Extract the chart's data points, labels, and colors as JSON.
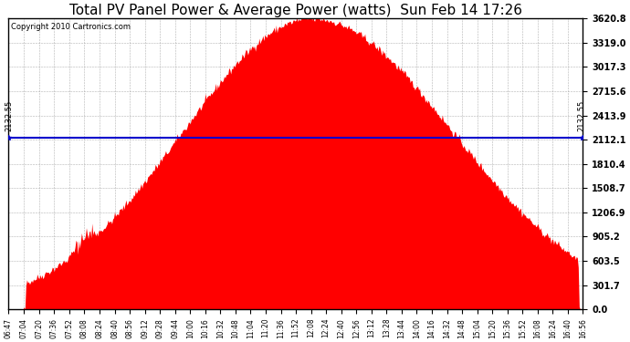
{
  "title": "Total PV Panel Power & Average Power (watts)  Sun Feb 14 17:26",
  "copyright": "Copyright 2010 Cartronics.com",
  "average_power": 2132.55,
  "y_max": 3620.8,
  "y_min": 0.0,
  "ytick_labels": [
    "0.0",
    "301.7",
    "603.5",
    "905.2",
    "1206.9",
    "1508.7",
    "1810.4",
    "2112.1",
    "2413.9",
    "2715.6",
    "3017.3",
    "3319.0",
    "3620.8"
  ],
  "ytick_values": [
    0.0,
    301.7,
    603.5,
    905.2,
    1206.9,
    1508.7,
    1810.4,
    2112.1,
    2413.9,
    2715.6,
    3017.3,
    3319.0,
    3620.8
  ],
  "xtick_labels": [
    "06:47",
    "07:04",
    "07:20",
    "07:36",
    "07:52",
    "08:08",
    "08:24",
    "08:40",
    "08:56",
    "09:12",
    "09:28",
    "09:44",
    "10:00",
    "10:16",
    "10:32",
    "10:48",
    "11:04",
    "11:20",
    "11:36",
    "11:52",
    "12:08",
    "12:24",
    "12:40",
    "12:56",
    "13:12",
    "13:28",
    "13:44",
    "14:00",
    "14:16",
    "14:32",
    "14:48",
    "15:04",
    "15:20",
    "15:36",
    "15:52",
    "16:08",
    "16:24",
    "16:40",
    "16:56"
  ],
  "fill_color": "#FF0000",
  "line_color": "#0000CC",
  "background_color": "#FFFFFF",
  "grid_color": "#AAAAAA",
  "title_fontsize": 11,
  "copyright_fontsize": 6,
  "avg_label_fontsize": 6,
  "ytick_fontsize": 7,
  "xtick_fontsize": 5.5
}
